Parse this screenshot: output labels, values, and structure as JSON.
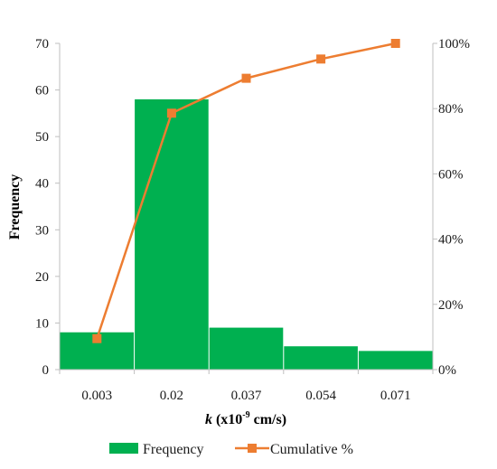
{
  "chart_data": {
    "type": "bar",
    "categories": [
      "0.003",
      "0.02",
      "0.037",
      "0.054",
      "0.071"
    ],
    "series": [
      {
        "name": "Frequency",
        "kind": "bar",
        "axis": "left",
        "color": "#00b050",
        "values": [
          8,
          58,
          9,
          5,
          4
        ]
      },
      {
        "name": "Cumulative %",
        "kind": "line",
        "axis": "right",
        "color": "#ed7d31",
        "values": [
          9.5,
          78.6,
          89.3,
          95.2,
          100
        ]
      }
    ],
    "xlabel_italic": "k",
    "xlabel_mid": " (x10",
    "xlabel_sup": "-9",
    "xlabel_end": " cm/s)",
    "ylabel": "Frequency",
    "ylim": [
      0,
      70
    ],
    "yticks": [
      "0",
      "10",
      "20",
      "30",
      "40",
      "50",
      "60",
      "70"
    ],
    "y2lim": [
      0,
      100
    ],
    "y2ticks": [
      "0%",
      "20%",
      "40%",
      "60%",
      "80%",
      "100%"
    ],
    "legend_position": "bottom",
    "grid": false
  }
}
